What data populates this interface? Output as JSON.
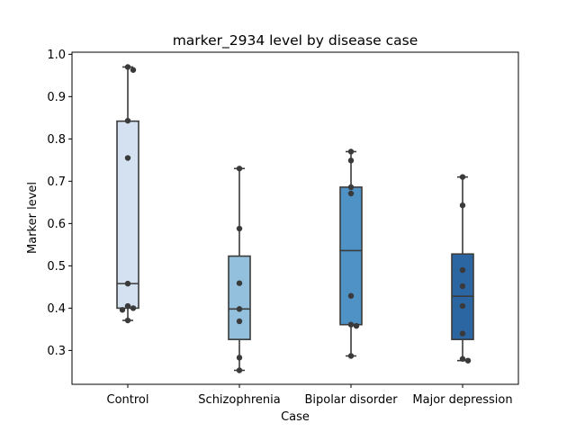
{
  "chart_data": {
    "type": "box",
    "title": "marker_2934 level by disease case",
    "xlabel": "Case",
    "ylabel": "Marker level",
    "ylim": [
      0.22,
      1.005
    ],
    "yticks": [
      0.3,
      0.4,
      0.5,
      0.6,
      0.7,
      0.8,
      0.9,
      1.0
    ],
    "ytick_labels": [
      "0.3",
      "0.4",
      "0.5",
      "0.6",
      "0.7",
      "0.8",
      "0.9",
      "1.0"
    ],
    "grid": false,
    "categories": [
      "Control",
      "Schizophrenia",
      "Bipolar disorder",
      "Major depression"
    ],
    "boxes": [
      {
        "q1": 0.4,
        "median": 0.458,
        "q3": 0.842,
        "whisker_low": 0.371,
        "whisker_high": 0.97,
        "color": "#d3e1f0"
      },
      {
        "q1": 0.326,
        "median": 0.398,
        "q3": 0.523,
        "whisker_low": 0.253,
        "whisker_high": 0.73,
        "color": "#93c1dd"
      },
      {
        "q1": 0.361,
        "median": 0.536,
        "q3": 0.686,
        "whisker_low": 0.287,
        "whisker_high": 0.77,
        "color": "#4e92c6"
      },
      {
        "q1": 0.326,
        "median": 0.428,
        "q3": 0.528,
        "whisker_low": 0.276,
        "whisker_high": 0.71,
        "color": "#2b66a2"
      }
    ],
    "points": [
      [
        0.97,
        0.963,
        0.843,
        0.755,
        0.458,
        0.405,
        0.4,
        0.396,
        0.371
      ],
      [
        0.73,
        0.588,
        0.459,
        0.398,
        0.369,
        0.283,
        0.253
      ],
      [
        0.77,
        0.749,
        0.671,
        0.686,
        0.429,
        0.361,
        0.358,
        0.287
      ],
      [
        0.71,
        0.643,
        0.49,
        0.452,
        0.405,
        0.34,
        0.28,
        0.276
      ]
    ]
  }
}
